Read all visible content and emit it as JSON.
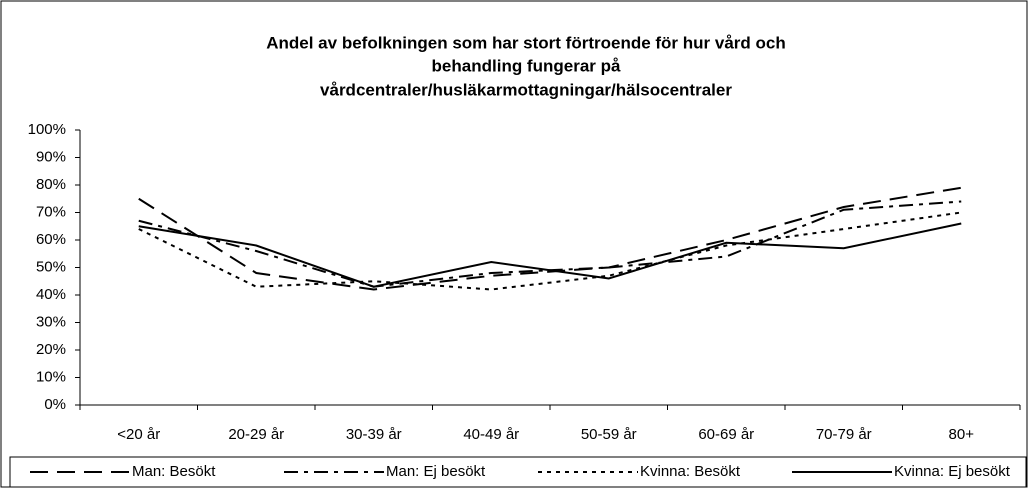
{
  "chart_data": {
    "type": "line",
    "title": [
      "Andel av befolkningen som har stort förtroende för hur vård och",
      "behandling fungerar på",
      "vårdcentraler/husläkarmottagningar/hälsocentraler"
    ],
    "categories": [
      "<20 år",
      "20-29 år",
      "30-39 år",
      "40-49 år",
      "50-59 år",
      "60-69 år",
      "70-79 år",
      "80+"
    ],
    "series": [
      {
        "name": "Man: Besökt",
        "color": "#000000",
        "dash": "18,9",
        "values": [
          75,
          48,
          42,
          47,
          50,
          60,
          72,
          79
        ]
      },
      {
        "name": "Man: Ej besökt",
        "color": "#000000",
        "dash": "14,6,4,6",
        "values": [
          67,
          56,
          43,
          48,
          50,
          54,
          71,
          74
        ]
      },
      {
        "name": "Kvinna: Besökt",
        "color": "#000000",
        "dash": "4,5",
        "values": [
          64,
          43,
          45,
          42,
          47,
          58,
          64,
          70
        ]
      },
      {
        "name": "Kvinna: Ej besökt",
        "color": "#000000",
        "dash": "none",
        "values": [
          65,
          58,
          43,
          52,
          46,
          59,
          57,
          66
        ]
      }
    ],
    "ylim": [
      0,
      100
    ],
    "yticks": [
      {
        "value": 0,
        "label": "0%"
      },
      {
        "value": 10,
        "label": "10%"
      },
      {
        "value": 20,
        "label": "20%"
      },
      {
        "value": 30,
        "label": "30%"
      },
      {
        "value": 40,
        "label": "40%"
      },
      {
        "value": 50,
        "label": "50%"
      },
      {
        "value": 60,
        "label": "60%"
      },
      {
        "value": 70,
        "label": "70%"
      },
      {
        "value": 80,
        "label": "80%"
      },
      {
        "value": 90,
        "label": "90%"
      },
      {
        "value": 100,
        "label": "100%"
      }
    ],
    "legend": "bottom"
  }
}
